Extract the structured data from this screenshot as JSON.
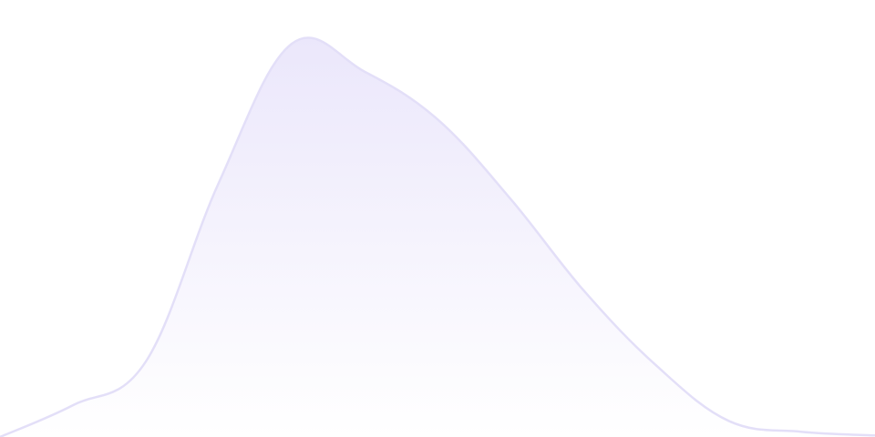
{
  "chart_data": {
    "type": "area",
    "title": "",
    "xlabel": "",
    "ylabel": "",
    "x": [
      0,
      1,
      2,
      3,
      4,
      5,
      6,
      7,
      8,
      9,
      10,
      11,
      12
    ],
    "series": [
      {
        "values": [
          0,
          8,
          19,
          64,
          99,
          92,
          80,
          60,
          37,
          18,
          4,
          1.3,
          0.4
        ]
      }
    ],
    "ylim": [
      0,
      105
    ],
    "grid": false,
    "legend": "none",
    "colors": {
      "fill_top": "#ebe7fb",
      "fill_bottom": "#ffffff",
      "stroke": "#e3dff8"
    }
  }
}
